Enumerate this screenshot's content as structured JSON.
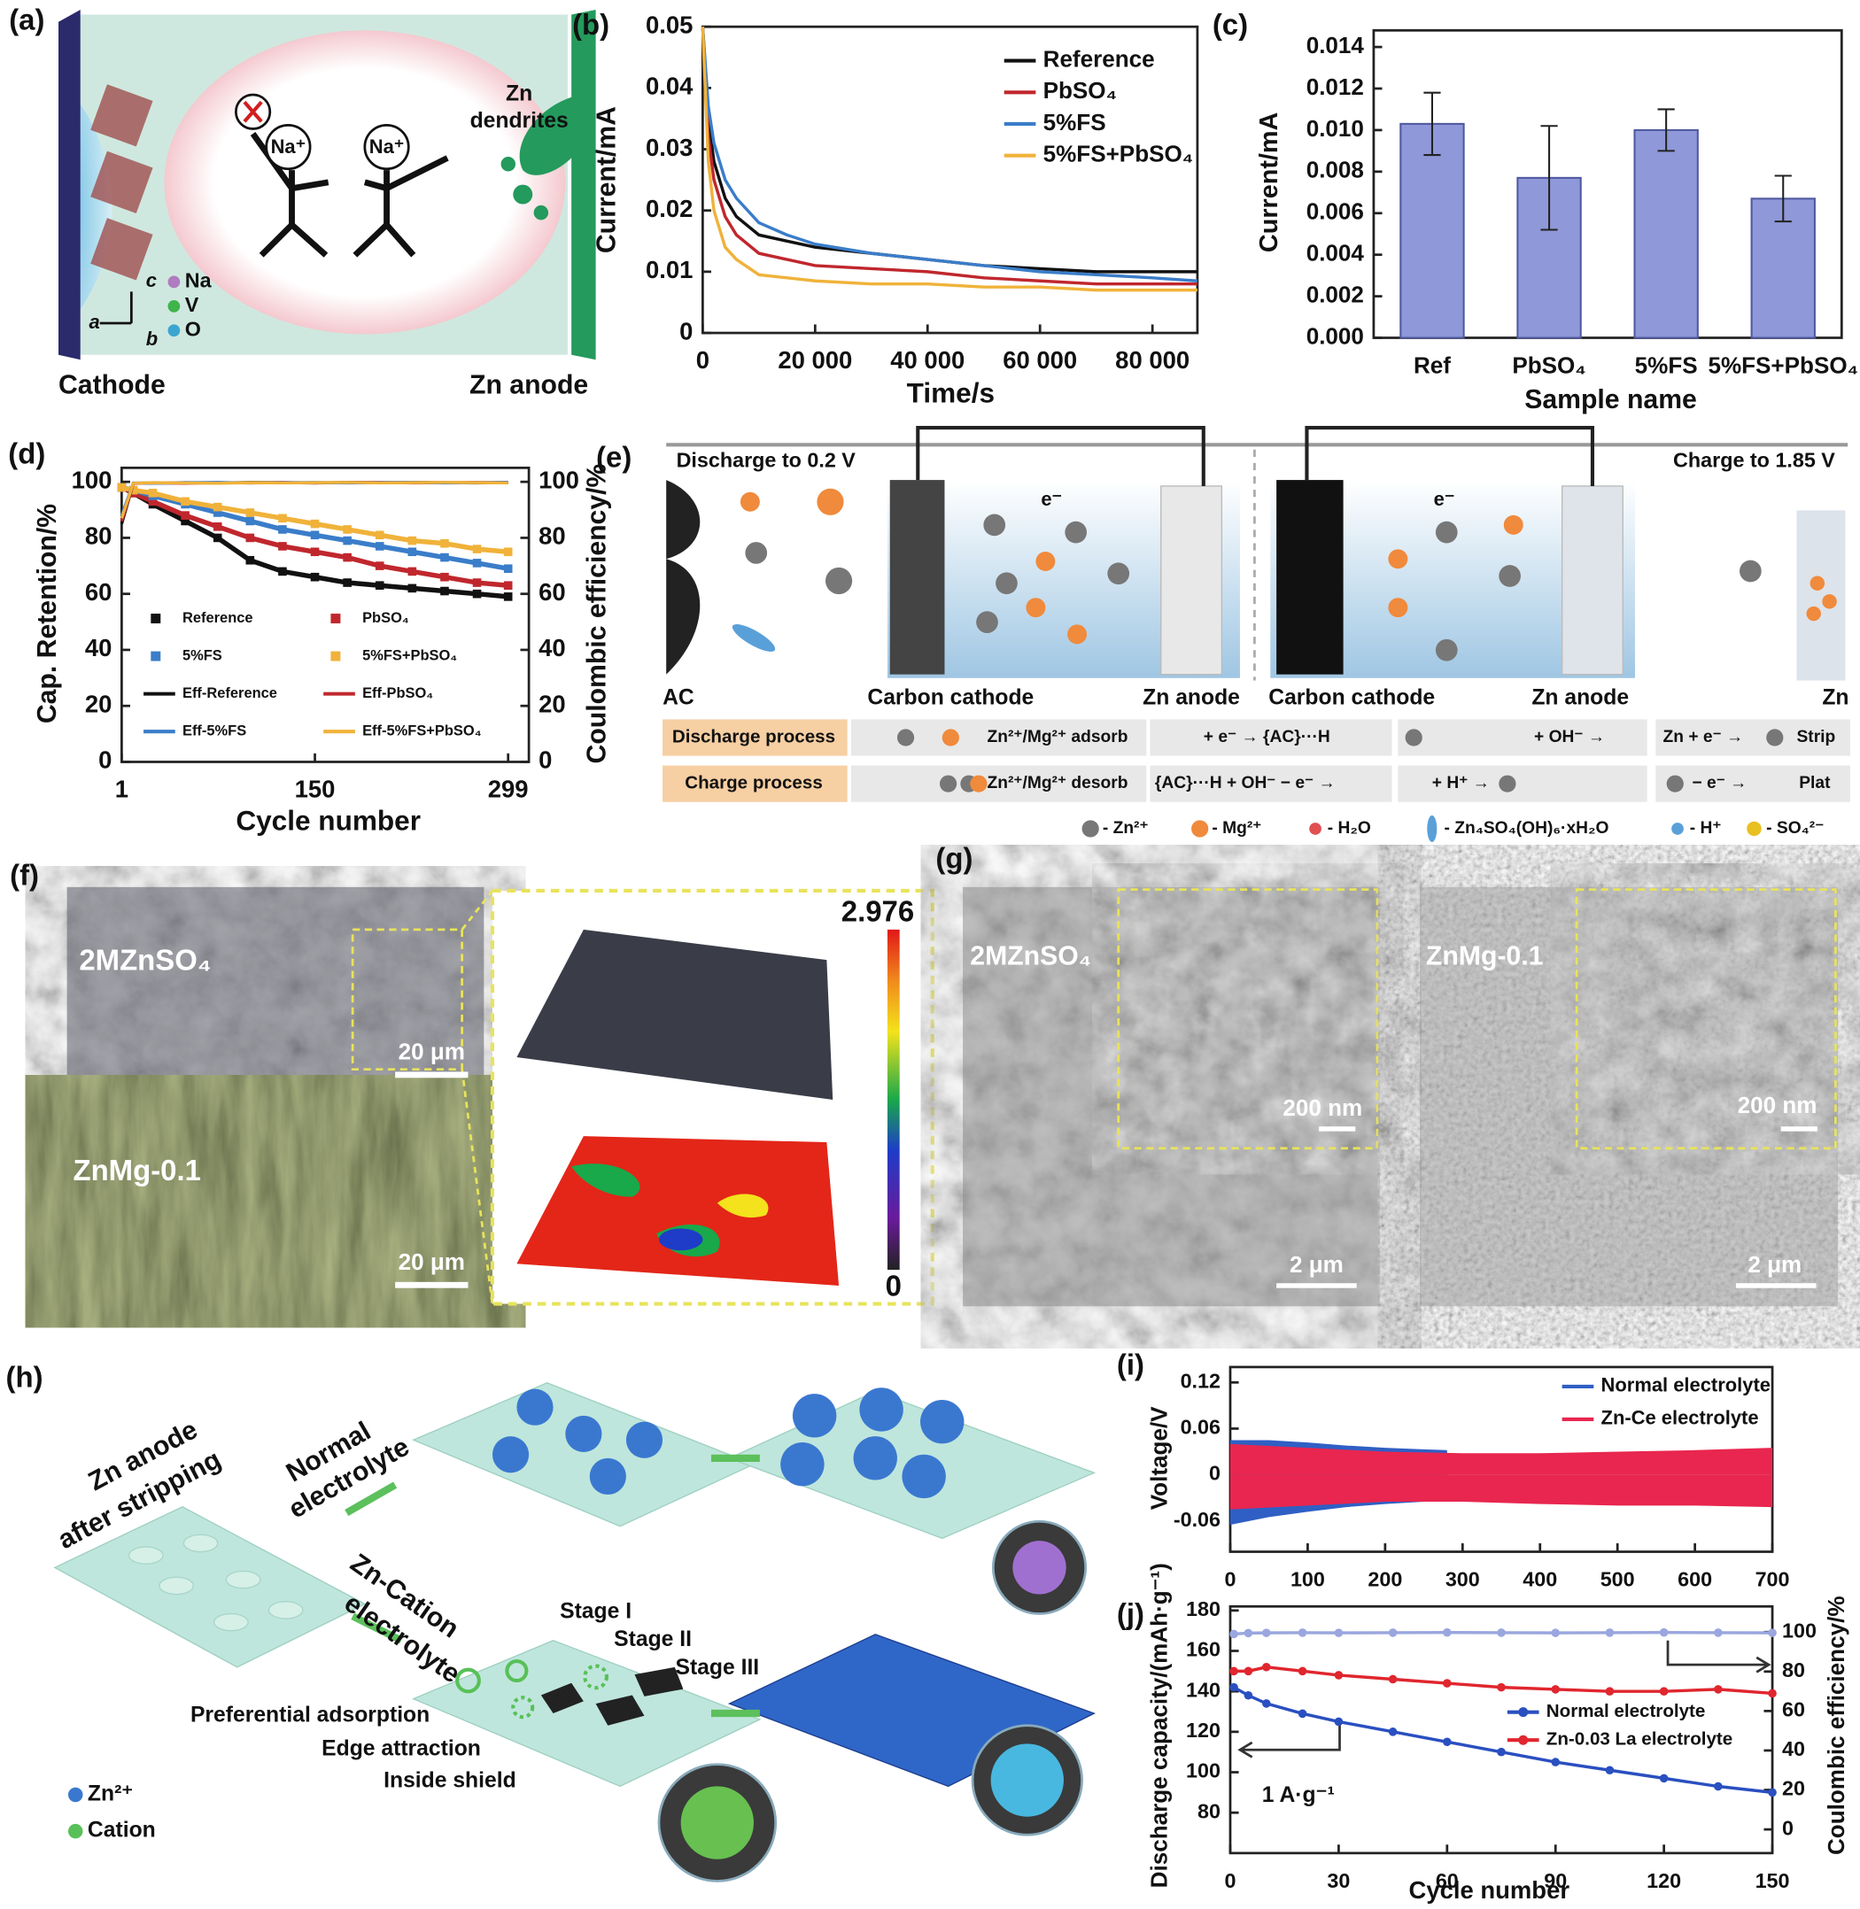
{
  "chart_data": [
    {
      "type": "line",
      "panel": "(b)",
      "x_label": "Time/s",
      "y_label": "Current/mA",
      "x": [
        0,
        1000,
        2000,
        4000,
        6000,
        10000,
        15000,
        20000,
        30000,
        40000,
        50000,
        60000,
        70000,
        80000,
        88000
      ],
      "xlim": [
        0,
        88000
      ],
      "xticks": [
        0,
        {
          "value": 20000,
          "label": "20 000"
        },
        {
          "value": 40000,
          "label": "40 000"
        },
        {
          "value": 60000,
          "label": "60 000"
        },
        {
          "value": 80000,
          "label": "80 000"
        }
      ],
      "ylim": [
        0,
        0.05
      ],
      "yticks": [
        0,
        0.01,
        0.02,
        0.03,
        0.04,
        0.05
      ],
      "series": [
        {
          "name": "Reference",
          "color": "#111111",
          "values": [
            0.05,
            0.035,
            0.028,
            0.022,
            0.019,
            0.016,
            0.015,
            0.014,
            0.013,
            0.012,
            0.011,
            0.0105,
            0.01,
            0.01,
            0.01
          ]
        },
        {
          "name": "PbSO₄",
          "color": "#c0272d",
          "values": [
            0.05,
            0.032,
            0.025,
            0.019,
            0.016,
            0.013,
            0.012,
            0.011,
            0.0105,
            0.01,
            0.009,
            0.0085,
            0.008,
            0.008,
            0.008
          ]
        },
        {
          "name": "5%FS",
          "color": "#3a7dc9",
          "values": [
            0.05,
            0.037,
            0.031,
            0.025,
            0.022,
            0.018,
            0.016,
            0.0145,
            0.013,
            0.012,
            0.011,
            0.01,
            0.0095,
            0.009,
            0.0085
          ]
        },
        {
          "name": "5%FS+PbSO₄",
          "color": "#f0b23a",
          "values": [
            0.05,
            0.028,
            0.02,
            0.014,
            0.012,
            0.0095,
            0.009,
            0.0085,
            0.008,
            0.008,
            0.0075,
            0.0075,
            0.007,
            0.007,
            0.007
          ]
        }
      ]
    },
    {
      "type": "bar",
      "panel": "(c)",
      "x_label": "Sample name",
      "y_label": "Current/mA",
      "categories": [
        "Ref",
        "PbSO₄",
        "5%FS",
        "5%FS+PbSO₄"
      ],
      "values": [
        0.0103,
        0.0077,
        0.01,
        0.0067
      ],
      "errors": [
        0.0015,
        0.0025,
        0.001,
        0.0011
      ],
      "color": "#8f98d8",
      "ylim": [
        0,
        0.0148
      ],
      "yticks": [
        {
          "value": 0,
          "label": "0.000"
        },
        0.002,
        0.004,
        0.006,
        0.008,
        {
          "value": 0.01,
          "label": "0.010"
        },
        0.012,
        0.014
      ]
    },
    {
      "type": "line",
      "panel": "(d)",
      "x_label": "Cycle number",
      "y_label": "Cap. Retention/%",
      "y2_label": "Coulombic efficiency/%",
      "x": [
        1,
        10,
        25,
        50,
        75,
        100,
        125,
        150,
        175,
        200,
        225,
        250,
        275,
        299
      ],
      "xlim": [
        1,
        315
      ],
      "xticks": [
        1,
        150,
        299
      ],
      "ylim": [
        0,
        105
      ],
      "yticks": [
        0,
        20,
        40,
        60,
        80,
        100
      ],
      "y2lim": [
        0,
        105
      ],
      "y2ticks": [
        0,
        20,
        40,
        60,
        80,
        100
      ],
      "series": [
        {
          "name": "Reference",
          "color": "#111111",
          "marker": "square",
          "values": [
            98,
            96,
            92,
            86,
            80,
            72,
            68,
            66,
            64,
            63,
            62,
            61,
            60,
            59
          ]
        },
        {
          "name": "PbSO₄",
          "color": "#c0272d",
          "marker": "square",
          "values": [
            98,
            96,
            93,
            88,
            84,
            80,
            77,
            75,
            73,
            70,
            68,
            66,
            64,
            63
          ]
        },
        {
          "name": "5%FS",
          "color": "#3a7dc9",
          "marker": "square",
          "values": [
            98,
            97,
            95,
            92,
            89,
            86,
            83,
            81,
            79,
            77,
            75,
            73,
            71,
            69
          ]
        },
        {
          "name": "5%FS+PbSO₄",
          "color": "#f0b23a",
          "marker": "square",
          "values": [
            98,
            97,
            96,
            93,
            91,
            89,
            87,
            85,
            83,
            81,
            79,
            78,
            76,
            75
          ]
        },
        {
          "name": "Eff-Reference",
          "color": "#111111",
          "axis": "y2",
          "values": [
            85,
            99.5,
            99.6,
            99.7,
            99.6,
            99.8,
            99.7,
            99.6,
            99.8,
            99.7,
            99.8,
            99.7,
            99.6,
            99.8
          ]
        },
        {
          "name": "Eff-PbSO₄",
          "color": "#c0272d",
          "axis": "y2",
          "values": [
            86,
            99.4,
            99.6,
            99.5,
            99.7,
            99.6,
            99.8,
            99.6,
            99.7,
            99.8,
            99.6,
            99.7,
            99.8,
            99.7
          ]
        },
        {
          "name": "Eff-5%FS",
          "color": "#3a7dc9",
          "axis": "y2",
          "values": [
            88,
            99.6,
            99.5,
            99.7,
            99.8,
            99.6,
            99.7,
            99.8,
            99.6,
            99.7,
            99.8,
            99.6,
            99.7,
            99.8
          ]
        },
        {
          "name": "Eff-5%FS+PbSO₄",
          "color": "#f0b23a",
          "axis": "y2",
          "values": [
            87,
            99.5,
            99.7,
            99.6,
            99.5,
            99.7,
            99.6,
            99.7,
            99.8,
            99.6,
            99.7,
            99.8,
            99.7,
            99.6
          ]
        }
      ]
    },
    {
      "type": "band",
      "panel": "(i)",
      "y_label": "Voltage/V",
      "xlim": [
        0,
        700
      ],
      "xticks": [
        0,
        100,
        200,
        300,
        400,
        500,
        600,
        700
      ],
      "ylim": [
        -0.1,
        0.14
      ],
      "yticks": [
        -0.06,
        0,
        0.06,
        0.12
      ],
      "series": [
        {
          "name": "Normal electrolyte",
          "color": "#2f5fc4",
          "x": [
            0,
            50,
            100,
            150,
            200,
            250,
            280
          ],
          "high": [
            0.045,
            0.045,
            0.042,
            0.038,
            0.035,
            0.033,
            0.032
          ],
          "low": [
            -0.065,
            -0.055,
            -0.048,
            -0.042,
            -0.038,
            -0.035,
            -0.033
          ]
        },
        {
          "name": "Zn-Ce electrolyte",
          "color": "#e8264f",
          "x": [
            0,
            100,
            200,
            300,
            400,
            500,
            600,
            700
          ],
          "high": [
            0.04,
            0.035,
            0.03,
            0.028,
            0.028,
            0.03,
            0.032,
            0.035
          ],
          "low": [
            -0.045,
            -0.04,
            -0.035,
            -0.035,
            -0.038,
            -0.04,
            -0.04,
            -0.042
          ]
        }
      ]
    },
    {
      "type": "line",
      "panel": "(j)",
      "x_label": "Cycle number",
      "y_label": "Discharge capacity/(mAh·g⁻¹)",
      "y2_label": "Coulombic efficiency/%",
      "annotation": "1 A·g⁻¹",
      "x": [
        1,
        5,
        10,
        20,
        30,
        45,
        60,
        75,
        90,
        105,
        120,
        135,
        150
      ],
      "xlim": [
        0,
        150
      ],
      "xticks": [
        0,
        30,
        60,
        90,
        120,
        150
      ],
      "ylim": [
        60,
        182
      ],
      "yticks": [
        80,
        100,
        120,
        140,
        160,
        180
      ],
      "y2lim": [
        -12,
        113
      ],
      "y2ticks": [
        0,
        20,
        40,
        60,
        80,
        100
      ],
      "series": [
        {
          "color": "#9aa6de",
          "axis": "y2",
          "marker": "circle",
          "values": [
            99,
            99.5,
            99.6,
            99.7,
            99.6,
            99.7,
            99.8,
            99.7,
            99.6,
            99.7,
            99.8,
            99.7,
            99.6
          ]
        },
        {
          "name": "Normal electrolyte",
          "color": "#2a4fc0",
          "marker": "circle",
          "values": [
            142,
            138,
            134,
            129,
            125,
            120,
            115,
            110,
            105,
            101,
            97,
            93,
            90
          ]
        },
        {
          "name": "Zn-0.03 La electrolyte",
          "color": "#e0262e",
          "marker": "circle",
          "values": [
            150,
            150,
            152,
            150,
            148,
            146,
            144,
            142,
            141,
            140,
            140,
            141,
            139
          ]
        }
      ]
    }
  ],
  "panel_a": {
    "label": "(a)",
    "cathode": "Cathode",
    "anode": "Zn anode",
    "dendrites": [
      "Zn",
      "dendrites"
    ],
    "ions": [
      "Na⁺",
      "Na⁺"
    ],
    "legend": [
      "Na",
      "V",
      "O"
    ],
    "axes": [
      "c",
      "a",
      "b"
    ]
  },
  "panel_e": {
    "label": "(e)",
    "discharge_title": "Discharge to 0.2 V",
    "charge_title": "Charge to 1.85 V",
    "electrons": [
      "e⁻",
      "e⁻"
    ],
    "labels": [
      "AC",
      "Carbon cathode",
      "Zn anode",
      "Carbon cathode",
      "Zn anode",
      "Zn"
    ],
    "rows": [
      [
        "Discharge process",
        "Zn²⁺/Mg²⁺ adsorb",
        "+ e⁻ → {AC}···H",
        "+ OH⁻ →",
        "Zn + e⁻ →",
        "Strip"
      ],
      [
        "Charge process",
        "Zn²⁺/Mg²⁺ desorb",
        "{AC}···H + OH⁻ − e⁻ →",
        "+ H⁺ →",
        "− e⁻ →",
        "Plat"
      ]
    ],
    "legend": [
      "- Zn²⁺",
      "- Mg²⁺",
      "- H₂O",
      "- Zn₄SO₄(OH)₆·xH₂O",
      "- H⁺",
      "- SO₄²⁻"
    ]
  },
  "panel_f": {
    "label": "(f)",
    "samples": [
      "2MZnSO₄",
      "ZnMg-0.1"
    ],
    "scale_bars": [
      "20 μm",
      "20 μm"
    ],
    "colorbar": [
      "2.976",
      "0"
    ]
  },
  "panel_g": {
    "label": "(g)",
    "samples": [
      "2MZnSO₄",
      "ZnMg-0.1"
    ],
    "inset_scale_bars": [
      "200 nm",
      "200 nm"
    ],
    "scale_bars": [
      "2 μm",
      "2 μm"
    ]
  },
  "panel_h": {
    "label": "(h)",
    "start": [
      "Zn anode",
      "after stripping"
    ],
    "normal": [
      "Normal",
      "electrolyte"
    ],
    "cation": [
      "Zn-Cation",
      "electrolyte"
    ],
    "stages": [
      "Stage I",
      "Stage II",
      "Stage III"
    ],
    "steps": [
      "Preferential adsorption",
      "Edge attraction",
      "Inside shield"
    ],
    "legend": [
      "Zn²⁺",
      "Cation"
    ]
  }
}
